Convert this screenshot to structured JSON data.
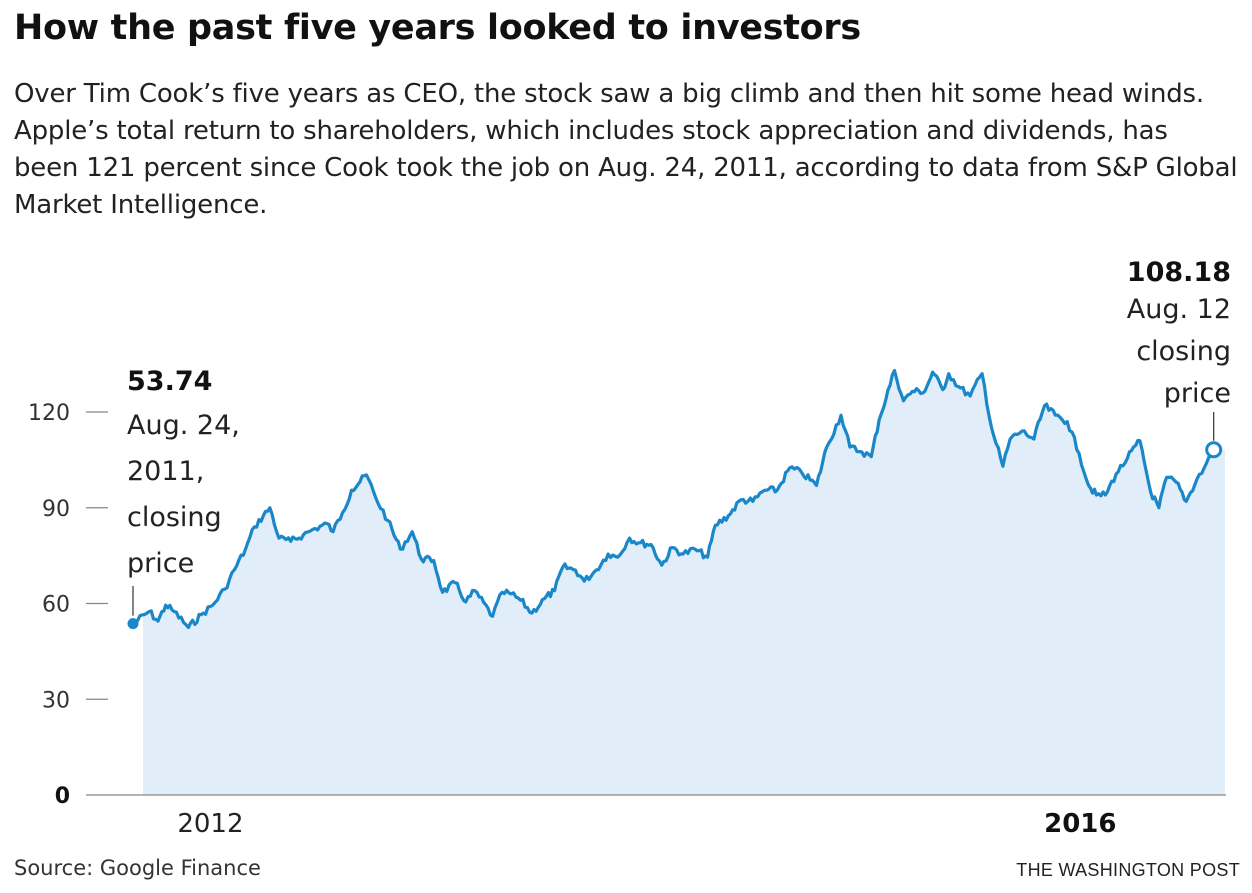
{
  "header": {
    "title": "How the past five years looked to investors",
    "subtitle": "Over Tim Cook’s five years as CEO, the stock saw a big climb and then hit some head winds. Apple’s total return to shareholders, which includes stock appreciation and dividends, has been 121 percent since Cook took the job on Aug. 24, 2011, according to data from S&P Global Market Intelligence."
  },
  "footer": {
    "source": "Source: Google Finance",
    "credit": "THE WASHINGTON POST"
  },
  "colors": {
    "line": "#1a87c9",
    "fill": "#e1edf9",
    "axis": "#888888"
  },
  "chart_data": {
    "type": "area",
    "y_range": [
      0,
      130
    ],
    "y_ticks": [
      {
        "value": 0,
        "label": "0",
        "bold": true
      },
      {
        "value": 30,
        "label": "30",
        "bold": false
      },
      {
        "value": 60,
        "label": "60",
        "bold": false
      },
      {
        "value": 90,
        "label": "90",
        "bold": false
      },
      {
        "value": 120,
        "label": "120",
        "bold": false
      }
    ],
    "x_range": [
      "2011-08-24",
      "2016-08-31"
    ],
    "x_ticks": [
      {
        "date": "2012-01-01",
        "label": "2012",
        "bold": false
      },
      {
        "date": "2016-01-01",
        "label": "2016",
        "bold": true
      }
    ],
    "series": [
      {
        "values": [
          [
            "2011-08-24",
            53.7
          ],
          [
            "2011-09-20",
            57.5
          ],
          [
            "2011-10-05",
            54.5
          ],
          [
            "2011-10-18",
            59.5
          ],
          [
            "2011-11-01",
            57.5
          ],
          [
            "2011-11-25",
            52.5
          ],
          [
            "2011-12-20",
            57.0
          ],
          [
            "2012-01-05",
            59.5
          ],
          [
            "2012-01-25",
            64.5
          ],
          [
            "2012-02-10",
            70.5
          ],
          [
            "2012-02-29",
            77.0
          ],
          [
            "2012-03-15",
            84.0
          ],
          [
            "2012-04-10",
            90.0
          ],
          [
            "2012-04-25",
            80.5
          ],
          [
            "2012-05-15",
            79.5
          ],
          [
            "2012-06-05",
            81.5
          ],
          [
            "2012-06-25",
            83.5
          ],
          [
            "2012-07-15",
            85.0
          ],
          [
            "2012-07-25",
            82.5
          ],
          [
            "2012-08-10",
            88.5
          ],
          [
            "2012-08-25",
            95.5
          ],
          [
            "2012-09-19",
            100.3
          ],
          [
            "2012-10-05",
            93.0
          ],
          [
            "2012-10-25",
            86.0
          ],
          [
            "2012-11-15",
            77.0
          ],
          [
            "2012-12-05",
            82.5
          ],
          [
            "2012-12-20",
            74.0
          ],
          [
            "2013-01-10",
            73.5
          ],
          [
            "2013-01-25",
            63.5
          ],
          [
            "2013-02-15",
            66.5
          ],
          [
            "2013-03-05",
            60.5
          ],
          [
            "2013-03-20",
            64.0
          ],
          [
            "2013-04-19",
            56.0
          ],
          [
            "2013-05-05",
            63.5
          ],
          [
            "2013-05-20",
            63.0
          ],
          [
            "2013-06-05",
            61.0
          ],
          [
            "2013-06-24",
            57.0
          ],
          [
            "2013-07-15",
            61.5
          ],
          [
            "2013-08-01",
            64.0
          ],
          [
            "2013-08-15",
            71.5
          ],
          [
            "2013-09-05",
            70.5
          ],
          [
            "2013-09-20",
            67.0
          ],
          [
            "2013-10-10",
            70.5
          ],
          [
            "2013-10-30",
            75.5
          ],
          [
            "2013-11-15",
            74.5
          ],
          [
            "2013-12-05",
            80.5
          ],
          [
            "2013-12-20",
            79.0
          ],
          [
            "2014-01-10",
            78.5
          ],
          [
            "2014-01-28",
            72.0
          ],
          [
            "2014-02-15",
            77.5
          ],
          [
            "2014-03-05",
            75.5
          ],
          [
            "2014-03-25",
            77.0
          ],
          [
            "2014-04-15",
            74.5
          ],
          [
            "2014-04-28",
            84.5
          ],
          [
            "2014-05-20",
            87.5
          ],
          [
            "2014-06-10",
            92.5
          ],
          [
            "2014-06-30",
            92.0
          ],
          [
            "2014-07-20",
            95.5
          ],
          [
            "2014-08-10",
            95.5
          ],
          [
            "2014-08-31",
            102.5
          ],
          [
            "2014-09-20",
            101.0
          ],
          [
            "2014-10-15",
            97.0
          ],
          [
            "2014-11-01",
            109.0
          ],
          [
            "2014-11-25",
            119.0
          ],
          [
            "2014-12-10",
            109.0
          ],
          [
            "2014-12-30",
            107.5
          ],
          [
            "2015-01-15",
            106.0
          ],
          [
            "2015-01-28",
            117.5
          ],
          [
            "2015-02-23",
            133.0
          ],
          [
            "2015-03-10",
            123.5
          ],
          [
            "2015-03-25",
            126.5
          ],
          [
            "2015-04-15",
            126.5
          ],
          [
            "2015-04-28",
            132.5
          ],
          [
            "2015-05-15",
            127.0
          ],
          [
            "2015-05-25",
            132.0
          ],
          [
            "2015-06-10",
            128.0
          ],
          [
            "2015-06-30",
            125.0
          ],
          [
            "2015-07-20",
            132.0
          ],
          [
            "2015-08-05",
            115.0
          ],
          [
            "2015-08-24",
            103.0
          ],
          [
            "2015-09-05",
            111.5
          ],
          [
            "2015-09-25",
            114.0
          ],
          [
            "2015-10-15",
            111.5
          ],
          [
            "2015-11-02",
            122.0
          ],
          [
            "2015-11-20",
            119.0
          ],
          [
            "2015-12-10",
            117.0
          ],
          [
            "2015-12-30",
            107.0
          ],
          [
            "2016-01-15",
            97.0
          ],
          [
            "2016-01-28",
            94.0
          ],
          [
            "2016-02-12",
            94.0
          ],
          [
            "2016-03-01",
            100.5
          ],
          [
            "2016-03-20",
            105.5
          ],
          [
            "2016-04-10",
            111.0
          ],
          [
            "2016-04-28",
            95.0
          ],
          [
            "2016-05-12",
            90.0
          ],
          [
            "2016-05-25",
            99.5
          ],
          [
            "2016-06-10",
            98.0
          ],
          [
            "2016-06-27",
            92.0
          ],
          [
            "2016-07-15",
            99.0
          ],
          [
            "2016-07-27",
            102.5
          ],
          [
            "2016-08-12",
            108.18
          ]
        ]
      }
    ],
    "annotations": [
      {
        "date": "2011-08-24",
        "value_label": "53.74",
        "lines": [
          "Aug. 24,",
          "2011,",
          "closing",
          "price"
        ],
        "marker": "filled"
      },
      {
        "date": "2016-08-12",
        "value_label": "108.18",
        "lines": [
          "Aug. 12",
          "closing",
          "price"
        ],
        "marker": "open"
      }
    ]
  }
}
